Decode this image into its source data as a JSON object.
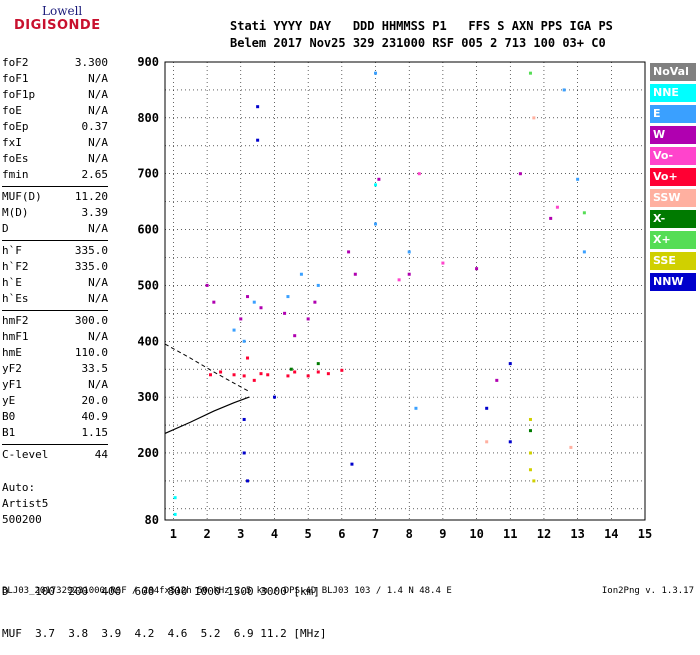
{
  "logo": {
    "line1": "Lowell",
    "line2": "DIGISONDE"
  },
  "header": {
    "row1": "Stati YYYY DAY   DDD HHMMSS P1   FFS S AXN PPS IGA PS",
    "row2": "Belem 2017 Nov25 329 231000 RSF 005 2 713 100 03+ C0"
  },
  "params": [
    {
      "label": "foF2",
      "value": "3.300"
    },
    {
      "label": "foF1",
      "value": "N/A"
    },
    {
      "label": "foF1p",
      "value": "N/A"
    },
    {
      "label": "foE",
      "value": "N/A"
    },
    {
      "label": "foEp",
      "value": "0.37"
    },
    {
      "label": "fxI",
      "value": "N/A"
    },
    {
      "label": "foEs",
      "value": "N/A"
    },
    {
      "label": "fmin",
      "value": "2.65"
    },
    {
      "label": "MUF(D)",
      "value": "11.20"
    },
    {
      "label": "M(D)",
      "value": "3.39"
    },
    {
      "label": "D",
      "value": "N/A"
    },
    {
      "label": "h`F",
      "value": "335.0"
    },
    {
      "label": "h`F2",
      "value": "335.0"
    },
    {
      "label": "h`E",
      "value": "N/A"
    },
    {
      "label": "h`Es",
      "value": "N/A"
    },
    {
      "label": "hmF2",
      "value": "300.0"
    },
    {
      "label": "hmF1",
      "value": "N/A"
    },
    {
      "label": "hmE",
      "value": "110.0"
    },
    {
      "label": "yF2",
      "value": "33.5"
    },
    {
      "label": "yF1",
      "value": "N/A"
    },
    {
      "label": "yE",
      "value": "20.0"
    },
    {
      "label": "B0",
      "value": "40.9"
    },
    {
      "label": "B1",
      "value": "1.15"
    },
    {
      "label": "C-level",
      "value": "44"
    }
  ],
  "auto": {
    "line1": "Auto:",
    "line2": "Artist5",
    "line3": "500200"
  },
  "legend": [
    {
      "label": "NoVal",
      "color": "#808080"
    },
    {
      "label": "NNE",
      "color": "#00ffff"
    },
    {
      "label": "E",
      "color": "#3aa0ff"
    },
    {
      "label": "W",
      "color": "#b000b0"
    },
    {
      "label": "Vo-",
      "color": "#ff44cc"
    },
    {
      "label": "Vo+",
      "color": "#ff0033"
    },
    {
      "label": "SSW",
      "color": "#ffb0a0"
    },
    {
      "label": "X-",
      "color": "#007a00"
    },
    {
      "label": "X+",
      "color": "#55dd55"
    },
    {
      "label": "SSE",
      "color": "#d0d000"
    },
    {
      "label": "NNW",
      "color": "#0000cc"
    }
  ],
  "d_table": {
    "row1": "D    100  200  400  600  800 1000 1500 3000 [km]",
    "row2": "MUF  3.7  3.8  3.9  4.2  4.6  5.2  6.9 11.2 [MHz]"
  },
  "footer": {
    "left": "BLJ03_2017329231000.RSF / 284fx512h 50 kHz 2.5 km / DPS-4D BLJ03 103 / 1.4 N 48.4 E",
    "right": "Ion2Png v. 1.3.17"
  },
  "chart_data": {
    "type": "scatter",
    "xlabel": "",
    "ylabel": "",
    "x_ticks": [
      1,
      2,
      3,
      4,
      5,
      6,
      7,
      8,
      9,
      10,
      11,
      12,
      13,
      14,
      15
    ],
    "y_ticks": [
      80,
      200,
      300,
      400,
      500,
      600,
      700,
      800,
      900
    ],
    "xlim": [
      0.75,
      15
    ],
    "ylim": [
      80,
      900
    ],
    "grid": true,
    "series": [
      {
        "name": "W",
        "color": "#b000b0",
        "points": [
          [
            2.0,
            500
          ],
          [
            2.2,
            470
          ],
          [
            3.0,
            440
          ],
          [
            3.2,
            480
          ],
          [
            3.6,
            460
          ],
          [
            4.3,
            450
          ],
          [
            4.6,
            410
          ],
          [
            5.0,
            440
          ],
          [
            5.2,
            470
          ],
          [
            6.2,
            560
          ],
          [
            6.4,
            520
          ],
          [
            7.1,
            690
          ],
          [
            8.0,
            520
          ],
          [
            10.0,
            530
          ],
          [
            10.6,
            330
          ],
          [
            11.3,
            700
          ],
          [
            12.2,
            620
          ]
        ]
      },
      {
        "name": "E",
        "color": "#3aa0ff",
        "points": [
          [
            2.8,
            420
          ],
          [
            3.1,
            400
          ],
          [
            3.4,
            470
          ],
          [
            4.4,
            480
          ],
          [
            4.8,
            520
          ],
          [
            5.3,
            500
          ],
          [
            7.0,
            880
          ],
          [
            7.0,
            610
          ],
          [
            8.0,
            560
          ],
          [
            8.2,
            280
          ],
          [
            12.6,
            850
          ],
          [
            13.0,
            690
          ],
          [
            13.2,
            560
          ]
        ]
      },
      {
        "name": "NNE",
        "color": "#00ffff",
        "points": [
          [
            1.05,
            120
          ],
          [
            1.05,
            90
          ],
          [
            7.0,
            680
          ]
        ]
      },
      {
        "name": "Vo+",
        "color": "#ff0033",
        "points": [
          [
            2.1,
            340
          ],
          [
            2.4,
            345
          ],
          [
            2.8,
            340
          ],
          [
            3.1,
            338
          ],
          [
            3.6,
            342
          ],
          [
            3.8,
            340
          ],
          [
            4.4,
            338
          ],
          [
            4.6,
            345
          ],
          [
            5.0,
            338
          ],
          [
            5.3,
            345
          ],
          [
            5.6,
            342
          ],
          [
            6.0,
            348
          ],
          [
            3.2,
            370
          ],
          [
            3.4,
            330
          ]
        ]
      },
      {
        "name": "NNW",
        "color": "#0000cc",
        "points": [
          [
            3.1,
            260
          ],
          [
            3.1,
            200
          ],
          [
            3.2,
            150
          ],
          [
            3.5,
            760
          ],
          [
            3.5,
            820
          ],
          [
            4.0,
            300
          ],
          [
            6.3,
            180
          ],
          [
            10.3,
            280
          ],
          [
            11.0,
            360
          ],
          [
            11.0,
            220
          ]
        ]
      },
      {
        "name": "X-",
        "color": "#007a00",
        "points": [
          [
            4.5,
            350
          ],
          [
            5.3,
            360
          ],
          [
            11.6,
            240
          ]
        ]
      },
      {
        "name": "X+",
        "color": "#55dd55",
        "points": [
          [
            11.6,
            880
          ],
          [
            13.2,
            630
          ]
        ]
      },
      {
        "name": "SSE",
        "color": "#d0d000",
        "points": [
          [
            11.6,
            200
          ],
          [
            11.6,
            170
          ],
          [
            11.7,
            150
          ],
          [
            11.6,
            260
          ]
        ]
      },
      {
        "name": "SSW",
        "color": "#ffb0a0",
        "points": [
          [
            10.3,
            220
          ],
          [
            11.7,
            800
          ],
          [
            12.8,
            210
          ]
        ]
      },
      {
        "name": "Vo-",
        "color": "#ff44cc",
        "points": [
          [
            9.0,
            540
          ],
          [
            8.3,
            700
          ],
          [
            12.4,
            640
          ],
          [
            7.7,
            510
          ]
        ]
      }
    ],
    "profile_solid": [
      [
        0.75,
        235
      ],
      [
        1.5,
        255
      ],
      [
        2.2,
        275
      ],
      [
        2.8,
        290
      ],
      [
        3.25,
        300
      ]
    ],
    "profile_dashed": [
      [
        0.75,
        395
      ],
      [
        1.5,
        370
      ],
      [
        2.2,
        345
      ],
      [
        2.8,
        325
      ],
      [
        3.25,
        310
      ]
    ]
  }
}
